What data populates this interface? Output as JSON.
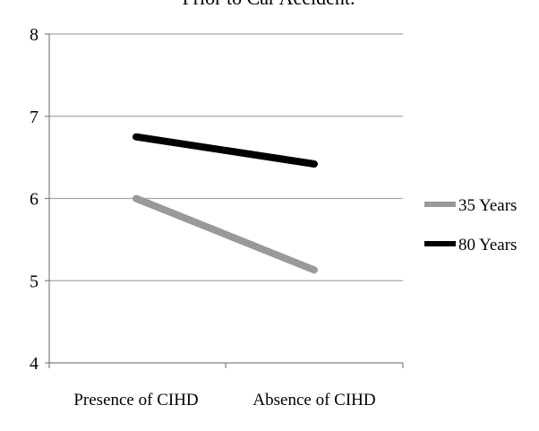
{
  "chart_data": {
    "type": "line",
    "title": "Prior to Car Accident.",
    "xlabel": "",
    "ylabel": "",
    "categories": [
      "Presence of CIHD",
      "Absence of CIHD"
    ],
    "series": [
      {
        "name": "35 Years",
        "values": [
          6.0,
          5.13
        ],
        "color": "#999999"
      },
      {
        "name": "80 Years",
        "values": [
          6.75,
          6.42
        ],
        "color": "#000000"
      }
    ],
    "ylim": [
      4,
      8
    ],
    "yticks": [
      "4",
      "5",
      "6",
      "7",
      "8"
    ],
    "grid": true,
    "legend": "right"
  }
}
